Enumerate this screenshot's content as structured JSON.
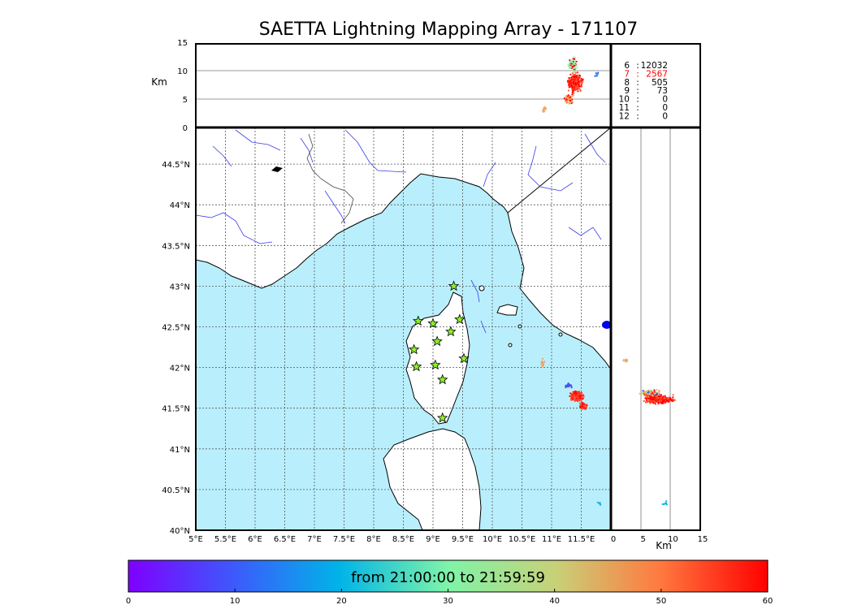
{
  "title": "SAETTA Lightning Mapping Array - 171107",
  "alt_panel": {
    "ylabel": "Km",
    "yticks": [
      "0",
      "5",
      "10",
      "15"
    ]
  },
  "right_panel": {
    "xlabel": "Km",
    "xticks": [
      "0",
      "5",
      "10",
      "15"
    ]
  },
  "map": {
    "lon_ticks": [
      "5°E",
      "5.5°E",
      "6°E",
      "6.5°E",
      "7°E",
      "7.5°E",
      "8°E",
      "8.5°E",
      "9°E",
      "9.5°E",
      "10°E",
      "10.5°E",
      "11°E",
      "11.5°E"
    ],
    "lat_ticks": [
      "40°N",
      "40.5°N",
      "41°N",
      "41.5°N",
      "42°N",
      "42.5°N",
      "43°N",
      "43.5°N",
      "44°N",
      "44.5°N"
    ],
    "lon_range": [
      5,
      12
    ],
    "lat_range": [
      40,
      44.95
    ],
    "stations": [
      {
        "lon": 9.35,
        "lat": 43.0
      },
      {
        "lon": 8.75,
        "lat": 42.57
      },
      {
        "lon": 9.0,
        "lat": 42.54
      },
      {
        "lon": 9.45,
        "lat": 42.59
      },
      {
        "lon": 9.3,
        "lat": 42.44
      },
      {
        "lon": 9.07,
        "lat": 42.32
      },
      {
        "lon": 8.68,
        "lat": 42.22
      },
      {
        "lon": 9.52,
        "lat": 42.11
      },
      {
        "lon": 8.72,
        "lat": 42.01
      },
      {
        "lon": 9.04,
        "lat": 42.03
      },
      {
        "lon": 9.16,
        "lat": 41.85
      },
      {
        "lon": 9.16,
        "lat": 41.38
      }
    ]
  },
  "stats": [
    {
      "n": "6",
      "sep": ":",
      "count": "12032",
      "color": "#000000"
    },
    {
      "n": "7",
      "sep": ":",
      "count": "2567",
      "color": "#ff0000"
    },
    {
      "n": "8",
      "sep": ":",
      "count": "505",
      "color": "#000000"
    },
    {
      "n": "9",
      "sep": ":",
      "count": "73",
      "color": "#000000"
    },
    {
      "n": "10",
      "sep": ":",
      "count": "0",
      "color": "#000000"
    },
    {
      "n": "11",
      "sep": ":",
      "count": "0",
      "color": "#000000"
    },
    {
      "n": "12",
      "sep": ":",
      "count": "0",
      "color": "#000000"
    }
  ],
  "colorbar": {
    "label": "from 21:00:00 to 21:59:59",
    "ticks": [
      "0",
      "10",
      "20",
      "30",
      "40",
      "50",
      "60"
    ],
    "range": [
      0,
      60
    ]
  },
  "colors": {
    "sea": "#b9effd",
    "grid": "#555555",
    "river": "#3a3aee",
    "station_fill": "#8cf028"
  }
}
